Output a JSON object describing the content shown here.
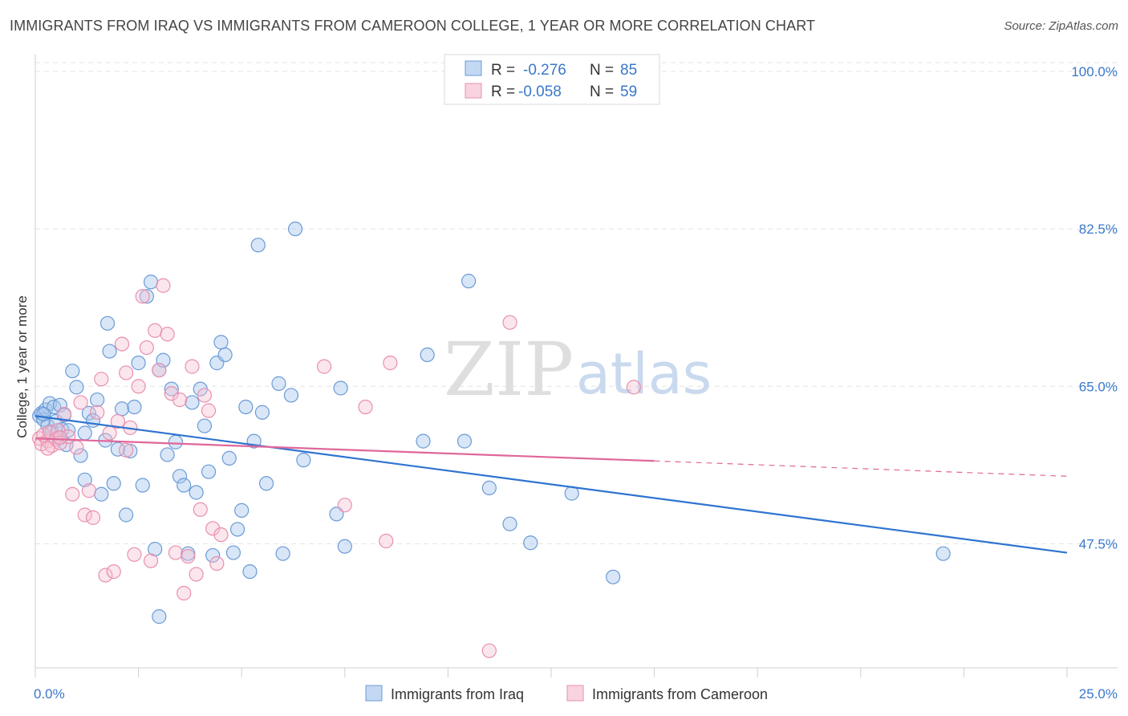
{
  "header": {
    "title": "IMMIGRANTS FROM IRAQ VS IMMIGRANTS FROM CAMEROON COLLEGE, 1 YEAR OR MORE CORRELATION CHART",
    "source": "Source: ZipAtlas.com"
  },
  "watermark": {
    "zip": "ZIP",
    "atlas": "atlas"
  },
  "legend": {
    "rows": [
      {
        "r_label": "R =",
        "r_value": "-0.276",
        "n_label": "N =",
        "n_value": "85",
        "color": "#8ab4e8"
      },
      {
        "r_label": "R =",
        "r_value": "-0.058",
        "n_label": "N =",
        "n_value": "59",
        "color": "#f2a7bf"
      }
    ]
  },
  "bottom_legend": {
    "iraq": "Immigrants from Iraq",
    "cameroon": "Immigrants from Cameroon"
  },
  "colors": {
    "iraq_fill": "#a9c8ee",
    "iraq_stroke": "#6b9bd6",
    "iraq_line": "#2f74d0",
    "cameroon_fill": "#f6c1d2",
    "cameroon_stroke": "#e98fae",
    "cameroon_line": "#e0679a",
    "tick_text": "#3a78c9",
    "grid": "#e3e3e3"
  },
  "chart_data": {
    "type": "scatter",
    "title": "IMMIGRANTS FROM IRAQ VS IMMIGRANTS FROM CAMEROON COLLEGE, 1 YEAR OR MORE CORRELATION CHART",
    "xlabel": "",
    "ylabel": "College, 1 year or more",
    "xlim": [
      0,
      25
    ],
    "ylim": [
      33.7,
      101.7
    ],
    "x_tick_labels": [
      "0.0%",
      "25.0%"
    ],
    "y_ticks": [
      47.5,
      65.0,
      82.5,
      100.0
    ],
    "y_tick_labels": [
      "47.5%",
      "65.0%",
      "82.5%",
      "100.0%"
    ],
    "grid": true,
    "legend_position": "top-center",
    "series": [
      {
        "name": "Immigrants from Iraq",
        "r": -0.276,
        "n": 85,
        "trend": {
          "x0": 0.0,
          "y0": 61.7,
          "x1": 25.0,
          "y1": 46.5
        },
        "points": [
          [
            0.1,
            61.7
          ],
          [
            0.15,
            62.0
          ],
          [
            0.2,
            61.3
          ],
          [
            0.25,
            62.4
          ],
          [
            0.3,
            60.6
          ],
          [
            0.35,
            63.1
          ],
          [
            0.4,
            59.9
          ],
          [
            0.45,
            62.7
          ],
          [
            0.5,
            61.1
          ],
          [
            0.55,
            59.3
          ],
          [
            0.6,
            62.9
          ],
          [
            0.65,
            60.2
          ],
          [
            0.7,
            61.8
          ],
          [
            0.75,
            58.5
          ],
          [
            0.8,
            60.1
          ],
          [
            0.9,
            66.7
          ],
          [
            1.0,
            64.9
          ],
          [
            1.1,
            57.3
          ],
          [
            1.2,
            59.8
          ],
          [
            1.3,
            62.0
          ],
          [
            1.4,
            61.2
          ],
          [
            1.5,
            63.5
          ],
          [
            1.6,
            53.0
          ],
          [
            1.7,
            59.0
          ],
          [
            1.75,
            72.0
          ],
          [
            1.8,
            68.9
          ],
          [
            1.9,
            54.2
          ],
          [
            2.0,
            58.0
          ],
          [
            2.1,
            62.5
          ],
          [
            2.2,
            50.7
          ],
          [
            2.3,
            57.8
          ],
          [
            2.4,
            62.7
          ],
          [
            2.5,
            67.6
          ],
          [
            2.6,
            54.0
          ],
          [
            2.7,
            75.0
          ],
          [
            2.8,
            76.6
          ],
          [
            2.9,
            46.9
          ],
          [
            3.0,
            66.8
          ],
          [
            3.1,
            67.9
          ],
          [
            3.2,
            57.4
          ],
          [
            3.3,
            64.7
          ],
          [
            3.4,
            58.8
          ],
          [
            3.5,
            55.0
          ],
          [
            3.6,
            54.0
          ],
          [
            3.7,
            46.4
          ],
          [
            3.8,
            63.2
          ],
          [
            3.9,
            53.2
          ],
          [
            4.0,
            64.7
          ],
          [
            4.1,
            60.6
          ],
          [
            4.2,
            55.5
          ],
          [
            4.3,
            46.2
          ],
          [
            4.4,
            67.6
          ],
          [
            4.5,
            69.9
          ],
          [
            4.6,
            68.5
          ],
          [
            4.7,
            57.0
          ],
          [
            4.8,
            46.5
          ],
          [
            4.9,
            49.1
          ],
          [
            5.0,
            51.2
          ],
          [
            5.1,
            62.7
          ],
          [
            5.2,
            44.4
          ],
          [
            5.3,
            58.9
          ],
          [
            5.4,
            80.7
          ],
          [
            5.5,
            62.1
          ],
          [
            5.6,
            54.2
          ],
          [
            5.9,
            65.3
          ],
          [
            6.0,
            46.4
          ],
          [
            6.2,
            64.0
          ],
          [
            6.3,
            82.5
          ],
          [
            6.5,
            56.8
          ],
          [
            7.3,
            50.8
          ],
          [
            7.4,
            64.8
          ],
          [
            7.5,
            47.2
          ],
          [
            9.4,
            58.9
          ],
          [
            9.5,
            68.5
          ],
          [
            10.4,
            58.9
          ],
          [
            10.5,
            76.7
          ],
          [
            11.0,
            53.7
          ],
          [
            11.5,
            49.7
          ],
          [
            12.0,
            47.6
          ],
          [
            13.0,
            53.1
          ],
          [
            14.0,
            43.8
          ],
          [
            22.0,
            46.4
          ],
          [
            3.0,
            39.4
          ],
          [
            0.2,
            61.9
          ],
          [
            1.2,
            54.6
          ]
        ]
      },
      {
        "name": "Immigrants from Cameroon",
        "r": -0.058,
        "n": 59,
        "trend": {
          "x0": 0.0,
          "y0": 59.2,
          "x1": 15.0,
          "y1": 56.7,
          "dashed_to_x": 25.0,
          "dashed_to_y": 55.0
        },
        "points": [
          [
            0.1,
            59.2
          ],
          [
            0.15,
            58.6
          ],
          [
            0.2,
            59.6
          ],
          [
            0.3,
            58.9
          ],
          [
            0.35,
            59.9
          ],
          [
            0.4,
            58.4
          ],
          [
            0.5,
            59.1
          ],
          [
            0.55,
            60.1
          ],
          [
            0.6,
            58.7
          ],
          [
            0.7,
            61.9
          ],
          [
            0.8,
            59.4
          ],
          [
            0.9,
            53.0
          ],
          [
            1.0,
            58.2
          ],
          [
            1.1,
            63.2
          ],
          [
            1.2,
            50.7
          ],
          [
            1.3,
            53.4
          ],
          [
            1.4,
            50.4
          ],
          [
            1.5,
            62.1
          ],
          [
            1.6,
            65.8
          ],
          [
            1.7,
            44.0
          ],
          [
            1.8,
            59.8
          ],
          [
            1.9,
            44.4
          ],
          [
            2.0,
            61.1
          ],
          [
            2.1,
            69.7
          ],
          [
            2.2,
            66.5
          ],
          [
            2.3,
            60.4
          ],
          [
            2.4,
            46.3
          ],
          [
            2.5,
            65.0
          ],
          [
            2.6,
            75.0
          ],
          [
            2.7,
            69.3
          ],
          [
            2.8,
            45.6
          ],
          [
            2.9,
            71.2
          ],
          [
            3.0,
            66.8
          ],
          [
            3.1,
            76.2
          ],
          [
            3.2,
            70.8
          ],
          [
            3.3,
            64.2
          ],
          [
            3.4,
            46.5
          ],
          [
            3.5,
            63.5
          ],
          [
            3.6,
            42.0
          ],
          [
            3.7,
            46.1
          ],
          [
            3.8,
            67.2
          ],
          [
            3.9,
            44.1
          ],
          [
            4.0,
            51.3
          ],
          [
            4.1,
            64.0
          ],
          [
            4.2,
            62.3
          ],
          [
            4.3,
            49.2
          ],
          [
            4.4,
            45.3
          ],
          [
            4.5,
            48.5
          ],
          [
            7.0,
            67.2
          ],
          [
            7.5,
            51.8
          ],
          [
            8.0,
            62.7
          ],
          [
            8.5,
            47.8
          ],
          [
            8.6,
            67.6
          ],
          [
            11.5,
            72.1
          ],
          [
            11.0,
            35.6
          ],
          [
            14.5,
            64.9
          ],
          [
            2.2,
            57.9
          ],
          [
            0.3,
            58.1
          ],
          [
            0.6,
            59.3
          ]
        ]
      }
    ]
  }
}
